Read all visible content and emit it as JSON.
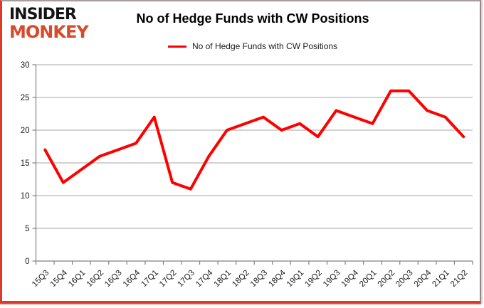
{
  "logo": {
    "line1": "INSIDER",
    "line2": "MONKEY",
    "line1_color": "#141414",
    "line2_color": "#d84a2c"
  },
  "header": {
    "title": "No of Hedge Funds with CW Positions"
  },
  "legend": {
    "label": "No of Hedge Funds with CW Positions",
    "line_color": "#ff0000"
  },
  "chart_data": {
    "type": "line",
    "title": "No of Hedge Funds with CW Positions",
    "categories": [
      "15Q3",
      "15Q4",
      "16Q1",
      "16Q2",
      "16Q3",
      "16Q4",
      "17Q1",
      "17Q2",
      "17Q3",
      "17Q4",
      "18Q1",
      "18Q2",
      "18Q3",
      "18Q4",
      "19Q1",
      "19Q2",
      "19Q3",
      "19Q4",
      "20Q1",
      "20Q2",
      "20Q3",
      "20Q4",
      "21Q1",
      "21Q2"
    ],
    "series": [
      {
        "name": "No of Hedge Funds with CW Positions",
        "color": "#ff0000",
        "values": [
          17,
          12,
          14,
          16,
          17,
          18,
          22,
          12,
          11,
          16,
          20,
          21,
          22,
          20,
          21,
          19,
          23,
          22,
          21,
          26,
          26,
          23,
          22,
          19
        ]
      }
    ],
    "xlabel": "",
    "ylabel": "",
    "ylim": [
      0,
      30
    ],
    "yticks": [
      0,
      5,
      10,
      15,
      20,
      25,
      30
    ],
    "grid": true,
    "legend_position": "top",
    "gridline_color": "#a6a6a6",
    "axis_color": "#808080",
    "label_color": "#1a1a1a"
  }
}
